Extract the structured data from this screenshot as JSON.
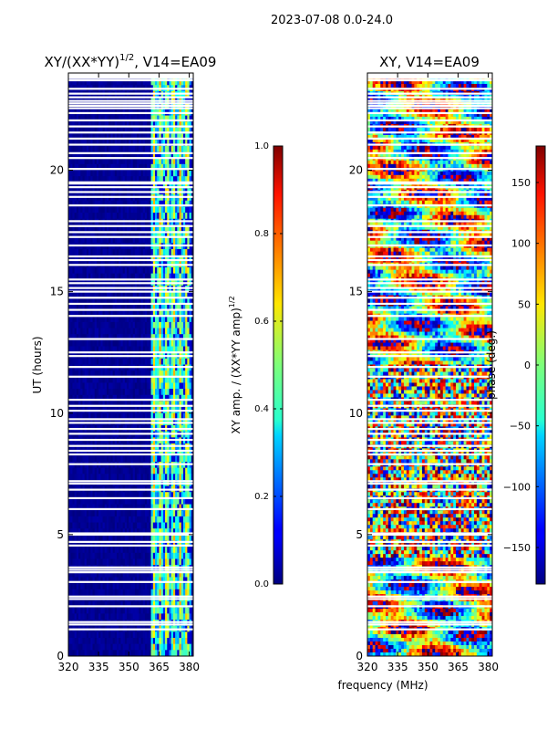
{
  "figure": {
    "suptitle": "2023-07-08 0.0-24.0",
    "xlabel_shared": "frequency (MHz)"
  },
  "chart_data": [
    {
      "type": "heatmap",
      "title": "XY/(XX*YY)",
      "title_superscript": "1/2",
      "title_suffix": ", V14=EA09",
      "xlabel": "",
      "ylabel": "UT (hours)",
      "xlim": [
        320,
        382
      ],
      "ylim": [
        0,
        24
      ],
      "xticks": [
        "320",
        "335",
        "350",
        "365",
        "380"
      ],
      "yticks": [
        "0",
        "5",
        "10",
        "15",
        "20"
      ],
      "colorbar": {
        "label": "XY amp. / (XX*YY amp)",
        "label_superscript": "1/2",
        "range": [
          0.0,
          1.0
        ],
        "ticks": [
          "0.0",
          "0.2",
          "0.4",
          "0.6",
          "0.8",
          "1.0"
        ],
        "colormap": "jet"
      }
    },
    {
      "type": "heatmap",
      "title": "XY, V14=EA09",
      "xlabel": "frequency (MHz)",
      "ylabel": "",
      "xlim": [
        320,
        382
      ],
      "ylim": [
        0,
        24
      ],
      "xticks": [
        "320",
        "335",
        "350",
        "365",
        "380"
      ],
      "yticks": [
        "0",
        "5",
        "10",
        "15",
        "20"
      ],
      "colorbar": {
        "label": "phase (deg.)",
        "range": [
          -180,
          180
        ],
        "ticks": [
          "150",
          "100",
          "50",
          "0",
          "−50",
          "−100",
          "−150"
        ],
        "tick_values": [
          150,
          100,
          50,
          0,
          -50,
          -100,
          -150
        ],
        "colormap": "jet"
      }
    }
  ],
  "gaps_ut_hours": [
    1.1,
    1.3,
    1.4,
    2.05,
    2.35,
    2.45,
    3.05,
    3.45,
    3.55,
    3.65,
    4.55,
    4.7,
    5.0,
    5.05,
    6.05,
    6.5,
    6.85,
    7.1,
    7.2,
    7.9,
    8.3,
    8.45,
    8.65,
    8.9,
    9.15,
    9.35,
    9.6,
    9.75,
    10.1,
    10.3,
    10.55,
    11.5,
    11.9,
    12.35,
    12.5,
    13.05,
    14.0,
    14.25,
    14.5,
    14.75,
    15.0,
    15.15,
    15.35,
    15.5,
    16.1,
    16.3,
    16.45,
    16.9,
    17.25,
    17.45,
    17.7,
    17.9,
    18.55,
    18.9,
    19.1,
    19.3,
    19.45,
    19.5,
    20.05,
    20.5,
    20.7,
    21.05,
    21.3,
    21.55,
    21.8,
    22.05,
    22.35,
    22.55,
    22.65,
    22.75,
    22.85,
    23.0,
    23.15,
    23.35,
    23.7
  ]
}
